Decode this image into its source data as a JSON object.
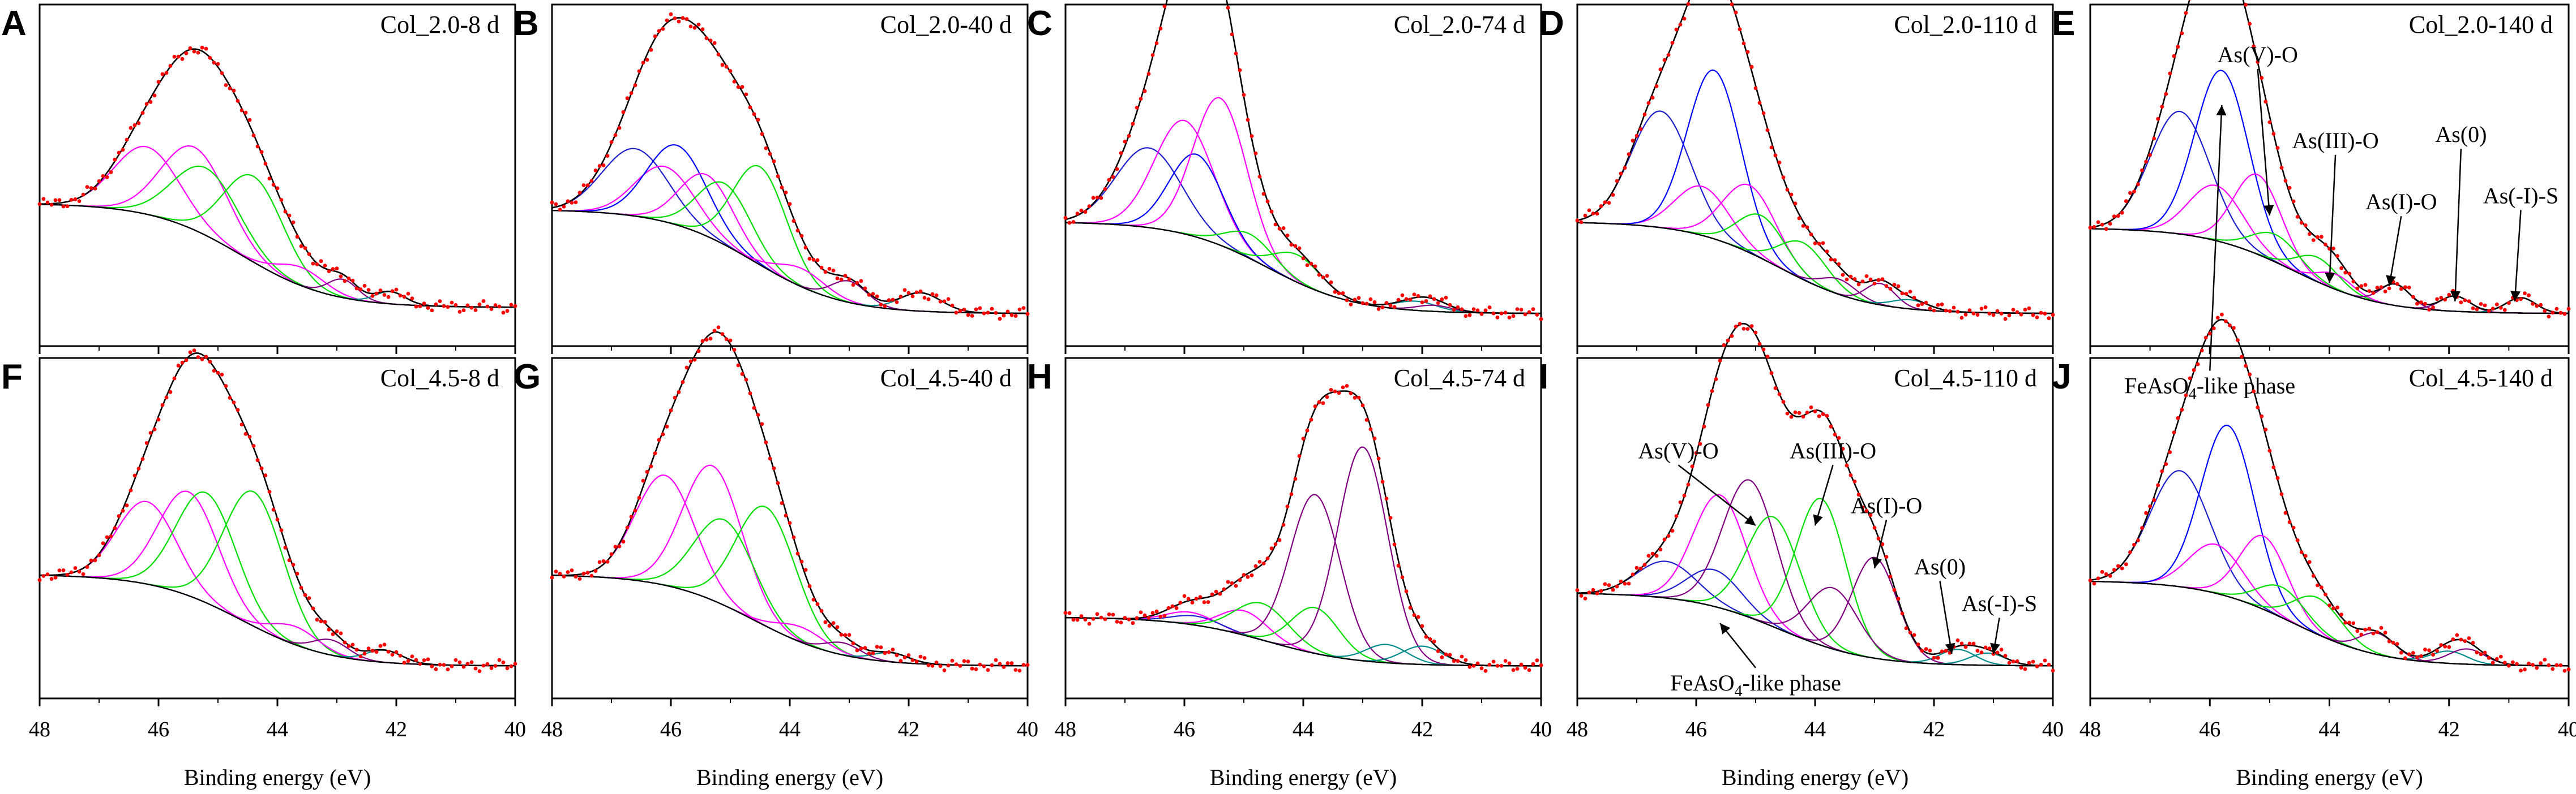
{
  "figure": {
    "colors": {
      "envelope": "#000000",
      "observed": "#ff0000",
      "background": "#000000",
      "FeAsO4-like phase": "#1f1fcc",
      "As(V)-O": "#0000ff",
      "As(III)-O": "#ff00ff",
      "As(I)-O": "#00dd00",
      "As(0)": "#800080",
      "As(-I)-S": "#008b8b"
    }
  },
  "chart_data": [
    {
      "id": "A",
      "letter": "A",
      "title": "Col_2.0-8 d",
      "type": "line",
      "xlabel": "Binding energy (eV)",
      "xlim": [
        48,
        40
      ],
      "xticks": [
        48,
        46,
        44,
        42,
        40
      ],
      "ylim": [
        0,
        1
      ],
      "background": [
        0.42,
        0.08
      ],
      "components": [
        {
          "name": "As(III)-O",
          "center": 46.2,
          "amp": 0.22,
          "width": 0.55
        },
        {
          "name": "As(III)-O",
          "center": 45.4,
          "amp": 0.27,
          "width": 0.55
        },
        {
          "name": "As(I)-O",
          "center": 45.2,
          "amp": 0.22,
          "width": 0.55
        },
        {
          "name": "As(I)-O",
          "center": 44.4,
          "amp": 0.28,
          "width": 0.5
        },
        {
          "name": "As(III)-O",
          "center": 43.6,
          "amp": 0.06,
          "width": 0.4
        },
        {
          "name": "As(0)",
          "center": 42.9,
          "amp": 0.06,
          "width": 0.25
        },
        {
          "name": "As(-I)-S",
          "center": 42.1,
          "amp": 0.04,
          "width": 0.25
        }
      ],
      "annotations": []
    },
    {
      "id": "B",
      "letter": "B",
      "title": "Col_2.0-40 d",
      "type": "line",
      "xlabel": "Binding energy (eV)",
      "xlim": [
        48,
        40
      ],
      "xticks": [
        48,
        46,
        44,
        42,
        40
      ],
      "ylim": [
        0,
        1
      ],
      "background": [
        0.4,
        0.06
      ],
      "components": [
        {
          "name": "FeAsO4-like phase",
          "center": 46.6,
          "amp": 0.22,
          "width": 0.55
        },
        {
          "name": "As(III)-O",
          "center": 46.1,
          "amp": 0.18,
          "width": 0.5
        },
        {
          "name": "As(V)-O",
          "center": 45.9,
          "amp": 0.26,
          "width": 0.5
        },
        {
          "name": "As(III)-O",
          "center": 45.4,
          "amp": 0.2,
          "width": 0.45
        },
        {
          "name": "As(I)-O",
          "center": 45.1,
          "amp": 0.2,
          "width": 0.45
        },
        {
          "name": "As(I)-O",
          "center": 44.5,
          "amp": 0.32,
          "width": 0.45
        },
        {
          "name": "As(III)-O",
          "center": 43.8,
          "amp": 0.06,
          "width": 0.4
        },
        {
          "name": "As(0)",
          "center": 43.0,
          "amp": 0.07,
          "width": 0.3
        },
        {
          "name": "As(-I)-S",
          "center": 41.8,
          "amp": 0.06,
          "width": 0.35
        }
      ],
      "annotations": []
    },
    {
      "id": "C",
      "letter": "C",
      "title": "Col_2.0-74 d",
      "type": "line",
      "xlabel": "Binding energy (eV)",
      "xlim": [
        48,
        40
      ],
      "xticks": [
        48,
        46,
        44,
        42,
        40
      ],
      "ylim": [
        0,
        1
      ],
      "background": [
        0.36,
        0.06
      ],
      "components": [
        {
          "name": "FeAsO4-like phase",
          "center": 46.6,
          "amp": 0.26,
          "width": 0.55
        },
        {
          "name": "As(III)-O",
          "center": 46.0,
          "amp": 0.37,
          "width": 0.5
        },
        {
          "name": "As(V)-O",
          "center": 45.8,
          "amp": 0.27,
          "width": 0.45
        },
        {
          "name": "As(III)-O",
          "center": 45.4,
          "amp": 0.48,
          "width": 0.45
        },
        {
          "name": "As(I)-O",
          "center": 44.9,
          "amp": 0.08,
          "width": 0.4
        },
        {
          "name": "As(I)-O",
          "center": 44.1,
          "amp": 0.09,
          "width": 0.4
        },
        {
          "name": "As(-I)-S",
          "center": 42.1,
          "amp": 0.03,
          "width": 0.35
        },
        {
          "name": "As(0)",
          "center": 41.8,
          "amp": 0.02,
          "width": 0.3
        }
      ],
      "annotations": []
    },
    {
      "id": "D",
      "letter": "D",
      "title": "Col_2.0-110 d",
      "type": "line",
      "xlabel": "Binding energy (eV)",
      "xlim": [
        48,
        40
      ],
      "xticks": [
        48,
        46,
        44,
        42,
        40
      ],
      "ylim": [
        0,
        1
      ],
      "background": [
        0.36,
        0.06
      ],
      "components": [
        {
          "name": "FeAsO4-like phase",
          "center": 46.6,
          "amp": 0.38,
          "width": 0.5
        },
        {
          "name": "As(III)-O",
          "center": 45.9,
          "amp": 0.16,
          "width": 0.45
        },
        {
          "name": "As(V)-O",
          "center": 45.7,
          "amp": 0.55,
          "width": 0.45
        },
        {
          "name": "As(III)-O",
          "center": 45.1,
          "amp": 0.22,
          "width": 0.45
        },
        {
          "name": "As(I)-O",
          "center": 44.9,
          "amp": 0.14,
          "width": 0.4
        },
        {
          "name": "As(I)-O",
          "center": 44.2,
          "amp": 0.12,
          "width": 0.4
        },
        {
          "name": "As(0)",
          "center": 43.6,
          "amp": 0.05,
          "width": 0.3
        },
        {
          "name": "As(0)",
          "center": 42.9,
          "amp": 0.07,
          "width": 0.25
        },
        {
          "name": "As(-I)-S",
          "center": 42.4,
          "amp": 0.03,
          "width": 0.3
        }
      ],
      "annotations": []
    },
    {
      "id": "E",
      "letter": "E",
      "title": "Col_2.0-140 d",
      "type": "line",
      "xlabel": "Binding energy (eV)",
      "xlim": [
        48,
        40
      ],
      "xticks": [
        48,
        46,
        44,
        42,
        40
      ],
      "ylim": [
        0,
        1
      ],
      "background": [
        0.34,
        0.06
      ],
      "components": [
        {
          "name": "FeAsO4-like phase",
          "center": 46.5,
          "amp": 0.4,
          "width": 0.5
        },
        {
          "name": "As(III)-O",
          "center": 45.9,
          "amp": 0.18,
          "width": 0.45
        },
        {
          "name": "As(V)-O",
          "center": 45.8,
          "amp": 0.56,
          "width": 0.45
        },
        {
          "name": "As(III)-O",
          "center": 45.2,
          "amp": 0.26,
          "width": 0.4
        },
        {
          "name": "As(I)-O",
          "center": 44.9,
          "amp": 0.09,
          "width": 0.4
        },
        {
          "name": "As(I)-O",
          "center": 44.2,
          "amp": 0.08,
          "width": 0.35
        },
        {
          "name": "As(III)-O",
          "center": 43.9,
          "amp": 0.05,
          "width": 0.3
        },
        {
          "name": "As(0)",
          "center": 42.9,
          "amp": 0.07,
          "width": 0.25
        },
        {
          "name": "As(0)",
          "center": 41.9,
          "amp": 0.05,
          "width": 0.25
        },
        {
          "name": "As(-I)-S",
          "center": 40.8,
          "amp": 0.05,
          "width": 0.25
        }
      ],
      "annotations": [
        {
          "text": "As(V)-O",
          "label_x": 45.2,
          "label_y": 0.88,
          "tip_x": 45.0,
          "tip_y": 0.38
        },
        {
          "text": "As(III)-O",
          "label_x": 43.9,
          "label_y": 0.6,
          "tip_x": 44.0,
          "tip_y": 0.16
        },
        {
          "text": "As(I)-O",
          "label_x": 42.8,
          "label_y": 0.4,
          "tip_x": 43.0,
          "tip_y": 0.15
        },
        {
          "text": "As(0)",
          "label_x": 41.8,
          "label_y": 0.62,
          "tip_x": 41.9,
          "tip_y": 0.1
        },
        {
          "text": "As(-I)-S",
          "label_x": 40.8,
          "label_y": 0.42,
          "tip_x": 40.9,
          "tip_y": 0.1
        },
        {
          "text": "FeAsO",
          "sub": "4",
          "after": "-like phase",
          "label_x": 46.0,
          "label_y": -0.2,
          "tip_x": 45.8,
          "tip_y": 0.74
        }
      ]
    },
    {
      "id": "F",
      "letter": "F",
      "title": "Col_4.5-8 d",
      "type": "line",
      "xlabel": "Binding energy (eV)",
      "xlim": [
        48,
        40
      ],
      "xticks": [
        48,
        46,
        44,
        42,
        40
      ],
      "ylim": [
        0,
        1
      ],
      "background": [
        0.36,
        0.06
      ],
      "components": [
        {
          "name": "As(III)-O",
          "center": 46.2,
          "amp": 0.27,
          "width": 0.5
        },
        {
          "name": "As(III)-O",
          "center": 45.5,
          "amp": 0.34,
          "width": 0.5
        },
        {
          "name": "As(I)-O",
          "center": 45.2,
          "amp": 0.36,
          "width": 0.5
        },
        {
          "name": "As(I)-O",
          "center": 44.4,
          "amp": 0.44,
          "width": 0.5
        },
        {
          "name": "As(III)-O",
          "center": 43.7,
          "amp": 0.06,
          "width": 0.4
        },
        {
          "name": "As(0)",
          "center": 43.1,
          "amp": 0.05,
          "width": 0.3
        },
        {
          "name": "As(-I)-S",
          "center": 42.2,
          "amp": 0.04,
          "width": 0.3
        }
      ],
      "annotations": []
    },
    {
      "id": "G",
      "letter": "G",
      "title": "Col_4.5-40 d",
      "type": "line",
      "xlabel": "Binding energy (eV)",
      "xlim": [
        48,
        40
      ],
      "xticks": [
        48,
        46,
        44,
        42,
        40
      ],
      "ylim": [
        0,
        1
      ],
      "background": [
        0.36,
        0.06
      ],
      "components": [
        {
          "name": "As(III)-O",
          "center": 46.1,
          "amp": 0.36,
          "width": 0.5
        },
        {
          "name": "As(III)-O",
          "center": 45.3,
          "amp": 0.44,
          "width": 0.5
        },
        {
          "name": "As(I)-O",
          "center": 45.1,
          "amp": 0.28,
          "width": 0.5
        },
        {
          "name": "As(I)-O",
          "center": 44.4,
          "amp": 0.39,
          "width": 0.5
        },
        {
          "name": "As(III)-O",
          "center": 43.8,
          "amp": 0.05,
          "width": 0.4
        },
        {
          "name": "As(0)",
          "center": 43.1,
          "amp": 0.04,
          "width": 0.3
        },
        {
          "name": "As(-I)-S",
          "center": 42.3,
          "amp": 0.03,
          "width": 0.3
        }
      ],
      "annotations": []
    },
    {
      "id": "H",
      "letter": "H",
      "title": "Col_4.5-74 d",
      "type": "line",
      "xlabel": "Binding energy (eV)",
      "xlim": [
        48,
        40
      ],
      "xticks": [
        48,
        46,
        44,
        42,
        40
      ],
      "ylim": [
        0,
        1
      ],
      "background": [
        0.22,
        0.06
      ],
      "components": [
        {
          "name": "As(III)-O",
          "center": 45.9,
          "amp": 0.04,
          "width": 0.4
        },
        {
          "name": "FeAsO4-like phase",
          "center": 45.8,
          "amp": 0.03,
          "width": 0.4
        },
        {
          "name": "As(III)-O",
          "center": 45.0,
          "amp": 0.08,
          "width": 0.4
        },
        {
          "name": "As(I)-O",
          "center": 44.7,
          "amp": 0.12,
          "width": 0.45
        },
        {
          "name": "As(I)-O",
          "center": 43.8,
          "amp": 0.15,
          "width": 0.4
        },
        {
          "name": "As(0)",
          "center": 43.8,
          "amp": 0.52,
          "width": 0.42
        },
        {
          "name": "As(0)",
          "center": 43.0,
          "amp": 0.7,
          "width": 0.42
        },
        {
          "name": "As(-I)-S",
          "center": 42.6,
          "amp": 0.06,
          "width": 0.35
        },
        {
          "name": "As(-I)-S",
          "center": 42.0,
          "amp": 0.06,
          "width": 0.35
        }
      ],
      "annotations": []
    },
    {
      "id": "I",
      "letter": "I",
      "title": "Col_4.5-110 d",
      "type": "line",
      "xlabel": "Binding energy (eV)",
      "xlim": [
        48,
        40
      ],
      "xticks": [
        48,
        46,
        44,
        42,
        40
      ],
      "ylim": [
        0,
        1
      ],
      "background": [
        0.3,
        0.06
      ],
      "components": [
        {
          "name": "FeAsO4-like phase",
          "center": 46.5,
          "amp": 0.12,
          "width": 0.5
        },
        {
          "name": "FeAsO4-like phase",
          "center": 45.7,
          "amp": 0.12,
          "width": 0.45
        },
        {
          "name": "As(III)-O",
          "center": 45.6,
          "amp": 0.37,
          "width": 0.45
        },
        {
          "name": "As(0)",
          "center": 45.1,
          "amp": 0.45,
          "width": 0.45
        },
        {
          "name": "As(I)-O",
          "center": 44.7,
          "amp": 0.36,
          "width": 0.45
        },
        {
          "name": "As(I)-O",
          "center": 43.9,
          "amp": 0.48,
          "width": 0.42
        },
        {
          "name": "As(0)",
          "center": 43.7,
          "amp": 0.2,
          "width": 0.42
        },
        {
          "name": "As(0)",
          "center": 43.0,
          "amp": 0.33,
          "width": 0.38
        },
        {
          "name": "As(-I)-S",
          "center": 41.6,
          "amp": 0.05,
          "width": 0.3
        },
        {
          "name": "As(-I)-S",
          "center": 41.1,
          "amp": 0.04,
          "width": 0.3
        }
      ],
      "annotations": [
        {
          "text": "As(V)-O",
          "label_x": 46.3,
          "label_y": 0.74,
          "tip_x": 45.0,
          "tip_y": 0.52
        },
        {
          "text": "As(III)-O",
          "label_x": 43.7,
          "label_y": 0.74,
          "tip_x": 44.0,
          "tip_y": 0.52
        },
        {
          "text": "As(I)-O",
          "label_x": 42.8,
          "label_y": 0.56,
          "tip_x": 43.0,
          "tip_y": 0.38
        },
        {
          "text": "As(0)",
          "label_x": 41.9,
          "label_y": 0.36,
          "tip_x": 41.7,
          "tip_y": 0.1
        },
        {
          "text": "As(-I)-S",
          "label_x": 40.9,
          "label_y": 0.24,
          "tip_x": 41.0,
          "tip_y": 0.1
        },
        {
          "text": "FeAsO",
          "sub": "4",
          "after": "-like phase",
          "label_x": 45.0,
          "label_y": -0.02,
          "tip_x": 45.6,
          "tip_y": 0.2
        }
      ]
    },
    {
      "id": "J",
      "letter": "J",
      "title": "Col_4.5-140 d",
      "type": "line",
      "xlabel": "Binding energy (eV)",
      "xlim": [
        48,
        40
      ],
      "xticks": [
        48,
        46,
        44,
        42,
        40
      ],
      "ylim": [
        0,
        1
      ],
      "background": [
        0.34,
        0.06
      ],
      "components": [
        {
          "name": "FeAsO4-like phase",
          "center": 46.5,
          "amp": 0.38,
          "width": 0.5
        },
        {
          "name": "As(III)-O",
          "center": 45.9,
          "amp": 0.16,
          "width": 0.45
        },
        {
          "name": "As(V)-O",
          "center": 45.7,
          "amp": 0.56,
          "width": 0.45
        },
        {
          "name": "As(III)-O",
          "center": 45.1,
          "amp": 0.24,
          "width": 0.4
        },
        {
          "name": "As(I)-O",
          "center": 44.8,
          "amp": 0.1,
          "width": 0.4
        },
        {
          "name": "As(I)-O",
          "center": 44.2,
          "amp": 0.12,
          "width": 0.4
        },
        {
          "name": "As(0)",
          "center": 43.2,
          "amp": 0.07,
          "width": 0.3
        },
        {
          "name": "As(-I)-S",
          "center": 42.0,
          "amp": 0.04,
          "width": 0.3
        },
        {
          "name": "As(0)",
          "center": 41.7,
          "amp": 0.05,
          "width": 0.3
        }
      ],
      "annotations": []
    }
  ]
}
